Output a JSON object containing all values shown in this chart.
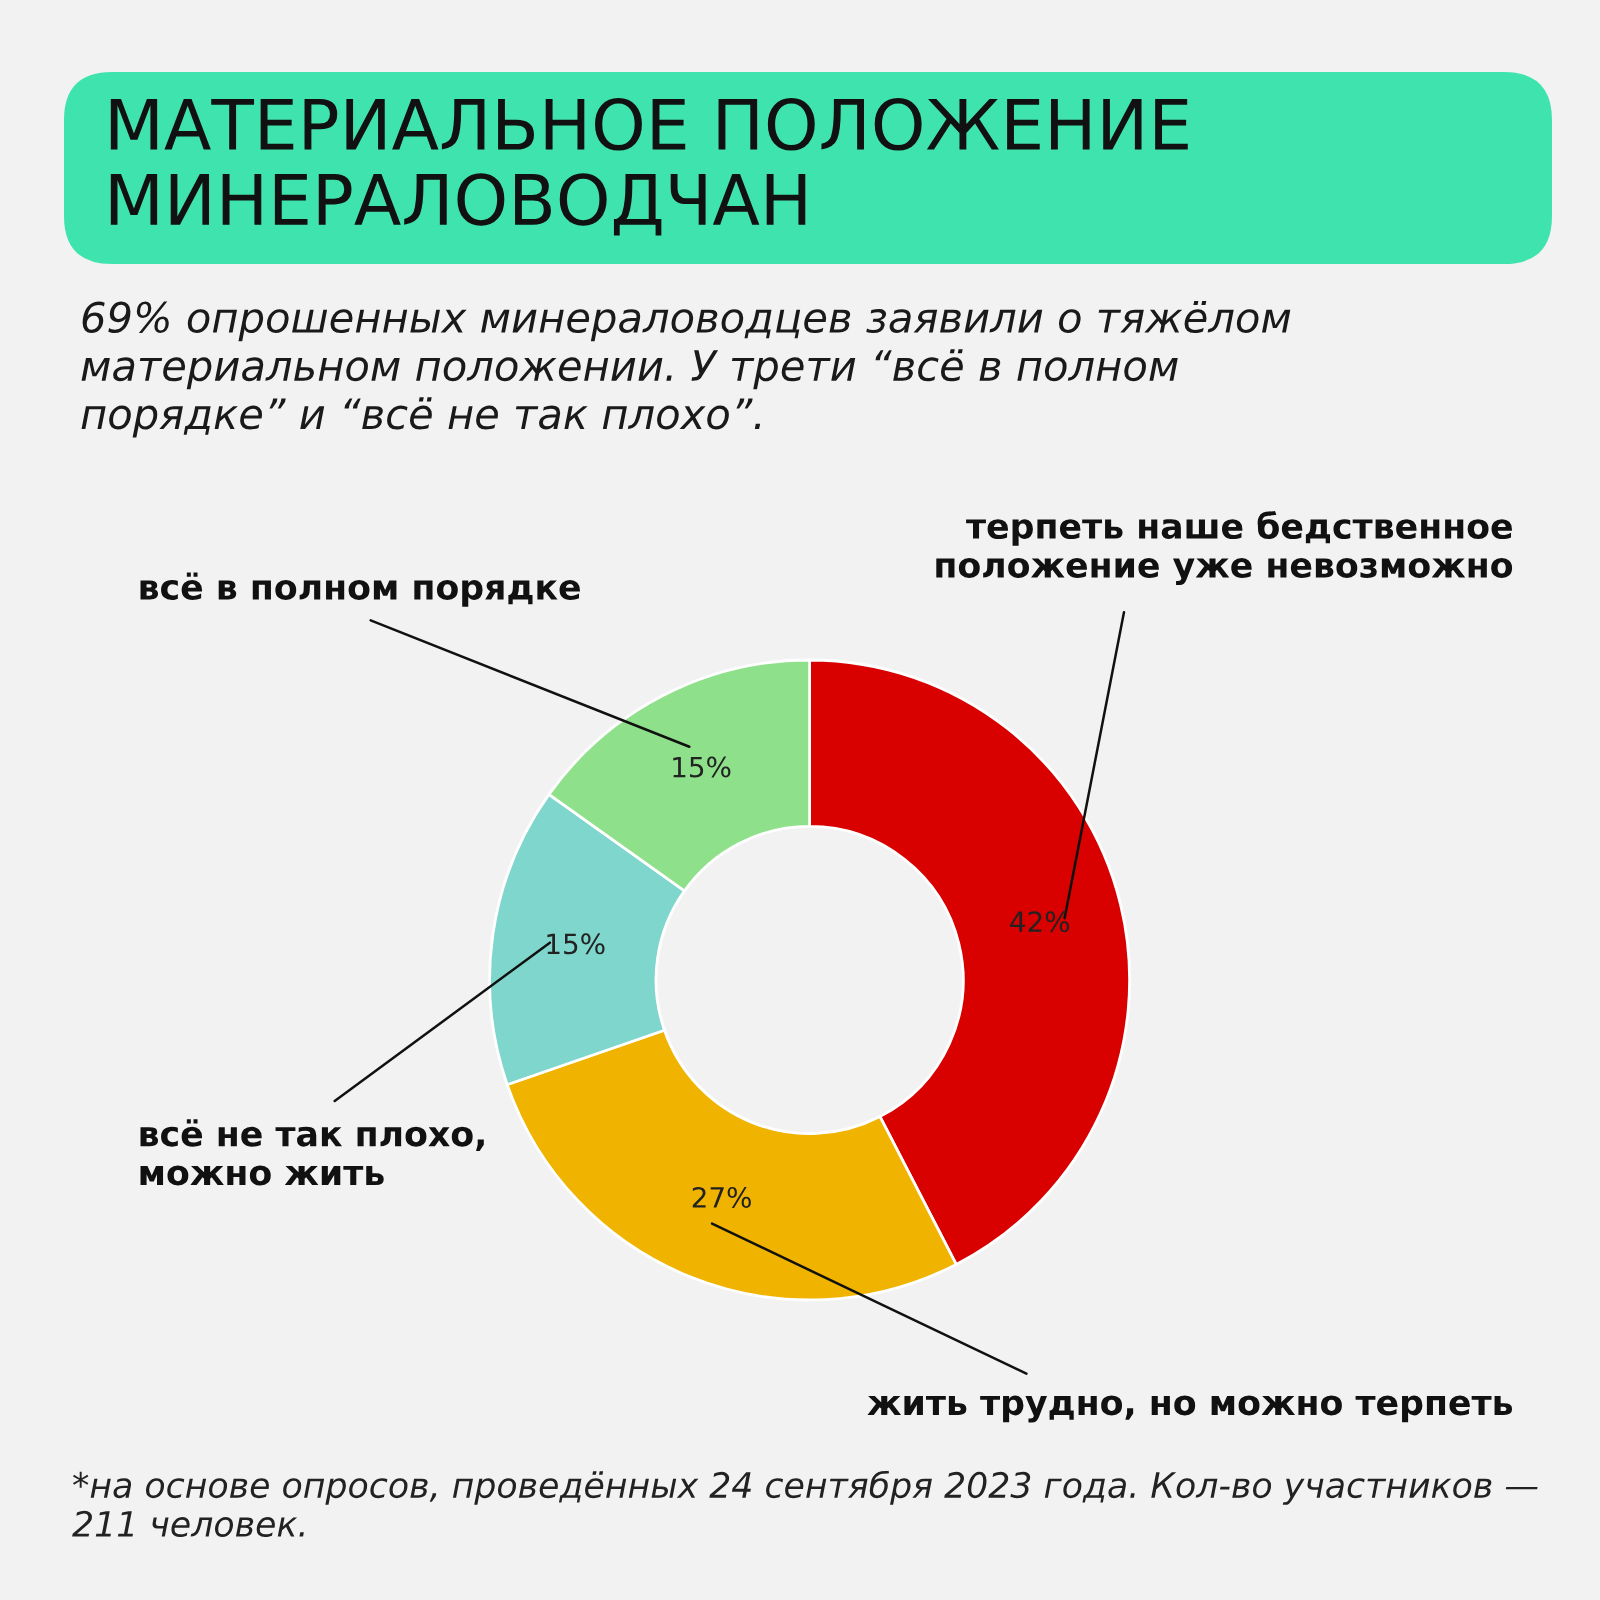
{
  "chart_data": {
    "type": "donut",
    "title": "МАТЕРИАЛЬНОЕ ПОЛОЖЕНИЕ\nМИНЕРАЛОВОДЧАН",
    "subtitle": "69% опрошенных минераловодцев заявили о тяжёлом\nматериальном положении. У трети “всё в полном\nпорядке” и “всё не так плохо”.",
    "categories": [
      "терпеть наше бедственное\nположение уже невозможно",
      "жить трудно, но можно терпеть",
      "всё не так плохо,\nможно жить",
      "всё в полном порядке"
    ],
    "values": [
      42,
      27,
      15,
      15
    ],
    "value_labels": [
      "42%",
      "27%",
      "15%",
      "15%"
    ],
    "colors": [
      "#d90000",
      "#f0b400",
      "#7fd6cc",
      "#8ee08a"
    ],
    "annotations": [
      "*на основе опросов, проведённых 24 сентября 2023 года. Кол-во участников — 211 человек."
    ]
  }
}
